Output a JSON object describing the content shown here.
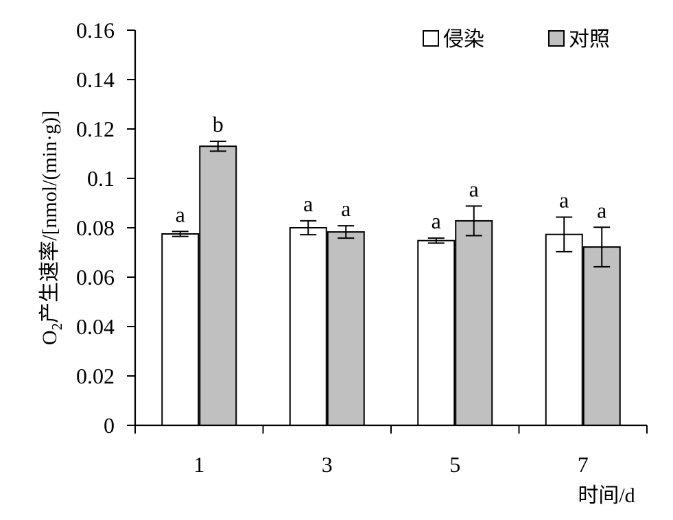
{
  "chart_data": {
    "type": "bar",
    "categories": [
      "1",
      "3",
      "5",
      "7"
    ],
    "series": [
      {
        "name": "侵染",
        "color": "#ffffff",
        "values": [
          0.0775,
          0.08,
          0.0748,
          0.0773
        ],
        "errors": [
          0.001,
          0.0028,
          0.001,
          0.007
        ],
        "significance": [
          "a",
          "a",
          "a",
          "a"
        ]
      },
      {
        "name": "对照",
        "color": "#c0c0c0",
        "values": [
          0.113,
          0.0783,
          0.0828,
          0.0722
        ],
        "errors": [
          0.002,
          0.0025,
          0.006,
          0.008
        ],
        "significance": [
          "b",
          "a",
          "a",
          "a"
        ]
      }
    ],
    "y_ticks": [
      "0",
      "0.02",
      "0.04",
      "0.06",
      "0.08",
      "0.1",
      "0.12",
      "0.14",
      "0.16"
    ],
    "ylim": [
      0,
      0.16
    ],
    "ylabel_main": "O",
    "ylabel_sub": "2",
    "ylabel_rest": "产生速率/[nmol/(min·g)]",
    "xlabel": "时间/d",
    "legend_position": "top-right",
    "grid": false
  }
}
